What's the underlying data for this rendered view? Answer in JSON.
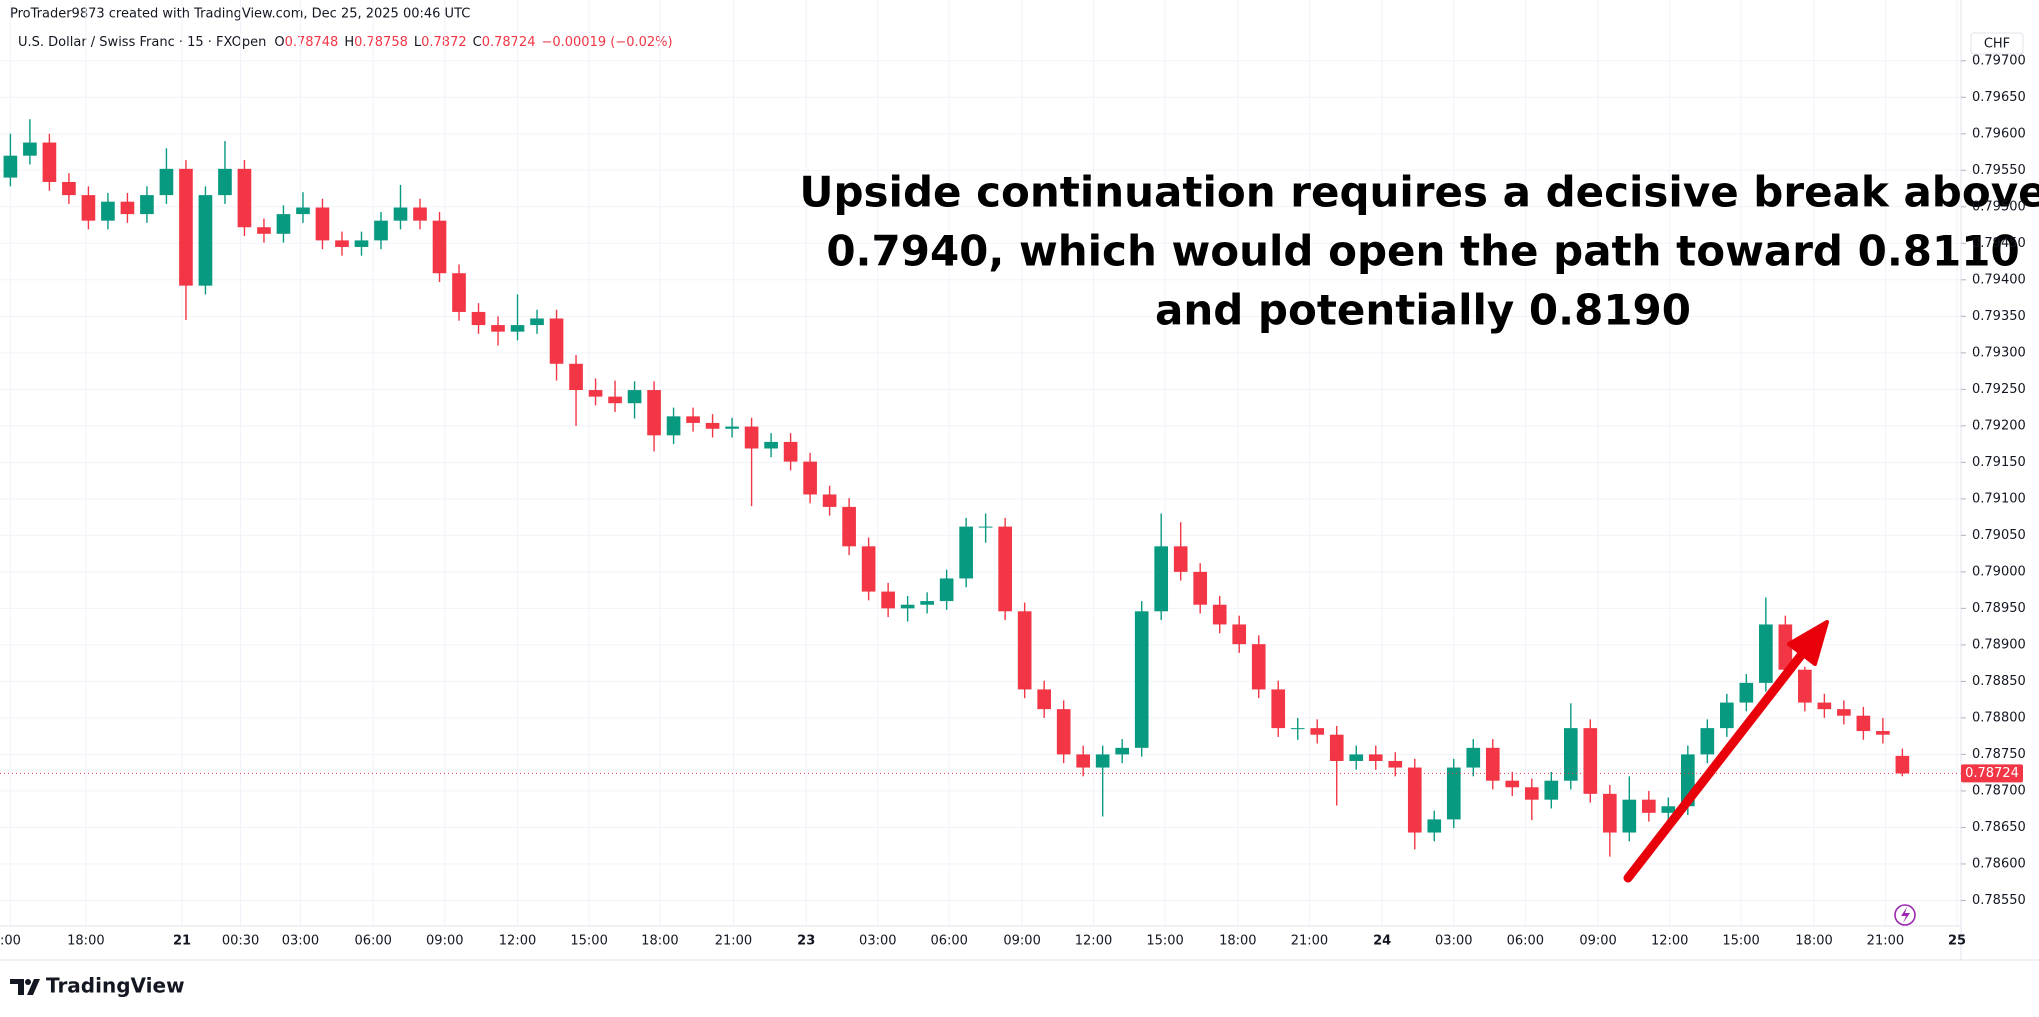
{
  "header": {
    "attribution": "ProTrader9873 created with TradingView.com, Dec 25, 2025 00:46 UTC"
  },
  "legend": {
    "symbol": "U.S. Dollar / Swiss Franc · 15 · FXOpen",
    "o_label": "O",
    "o": 0.78748,
    "h_label": "H",
    "h": 0.78758,
    "l_label": "L",
    "l": 0.7872,
    "c_label": "C",
    "c": 0.78724,
    "change": "−0.00019 (−0.02%)"
  },
  "chart_data": {
    "type": "candlestick",
    "annotation": [
      "Upside continuation requires a decisive break above",
      "0.7940, which would open the path toward 0.8110",
      "and potentially 0.8190"
    ],
    "currency": "CHF",
    "up_color": "#089981",
    "down_color": "#f23645",
    "last_price": 0.78724,
    "open": [
      0.7954,
      0.7957,
      0.79588,
      0.79534,
      0.79516,
      0.79481,
      0.79507,
      0.7949,
      0.79516,
      0.79552,
      0.79392,
      0.79516,
      0.79552,
      0.79472,
      0.79463,
      0.7949,
      0.79499,
      0.79454,
      0.79445,
      0.79454,
      0.79481,
      0.79499,
      0.79481,
      0.79409,
      0.79356,
      0.79338,
      0.79329,
      0.79338,
      0.79347,
      0.79285,
      0.79249,
      0.7924,
      0.79231,
      0.79249,
      0.79187,
      0.79213,
      0.79204,
      0.79196,
      0.79199,
      0.79169,
      0.79178,
      0.79151,
      0.79106,
      0.79089,
      0.79035,
      0.78973,
      0.7895,
      0.78955,
      0.7896,
      0.78991,
      0.79062,
      0.79062,
      0.78946,
      0.78839,
      0.78812,
      0.7875,
      0.78732,
      0.7875,
      0.78759,
      0.78946,
      0.79035,
      0.79,
      0.78955,
      0.78928,
      0.78901,
      0.78839,
      0.78786,
      0.78786,
      0.78777,
      0.78741,
      0.7875,
      0.78741,
      0.78732,
      0.78643,
      0.78661,
      0.78732,
      0.78759,
      0.78714,
      0.78705,
      0.78688,
      0.78714,
      0.78786,
      0.78696,
      0.78643,
      0.78688,
      0.7867,
      0.78679,
      0.7875,
      0.78786,
      0.78821,
      0.78848,
      0.78928,
      0.78866,
      0.78821,
      0.78812,
      0.78803,
      0.78782,
      0.78748
    ],
    "high": [
      0.796,
      0.7962,
      0.796,
      0.79546,
      0.79528,
      0.79519,
      0.79519,
      0.79528,
      0.7958,
      0.79564,
      0.79528,
      0.7959,
      0.79564,
      0.79484,
      0.79502,
      0.7952,
      0.79511,
      0.79466,
      0.79466,
      0.79493,
      0.7953,
      0.79511,
      0.79493,
      0.79421,
      0.79368,
      0.7935,
      0.7938,
      0.79359,
      0.79359,
      0.79297,
      0.79265,
      0.79262,
      0.79261,
      0.79261,
      0.79225,
      0.79225,
      0.79216,
      0.79211,
      0.79211,
      0.7919,
      0.7919,
      0.79163,
      0.79118,
      0.79101,
      0.79047,
      0.78985,
      0.78967,
      0.78972,
      0.79003,
      0.79074,
      0.7908,
      0.79074,
      0.78958,
      0.78851,
      0.78824,
      0.78762,
      0.78762,
      0.78771,
      0.7896,
      0.7908,
      0.79068,
      0.79012,
      0.78967,
      0.7894,
      0.78913,
      0.78851,
      0.788,
      0.78798,
      0.78789,
      0.78762,
      0.78762,
      0.78753,
      0.78744,
      0.78673,
      0.78744,
      0.78771,
      0.78771,
      0.78726,
      0.78717,
      0.78726,
      0.7882,
      0.78798,
      0.78708,
      0.7872,
      0.787,
      0.78691,
      0.78762,
      0.78798,
      0.78833,
      0.7886,
      0.78965,
      0.7894,
      0.7887,
      0.78833,
      0.78824,
      0.78815,
      0.788,
      0.78758
    ],
    "low": [
      0.79528,
      0.79558,
      0.79522,
      0.79504,
      0.79469,
      0.79469,
      0.79478,
      0.79478,
      0.79504,
      0.79345,
      0.7938,
      0.79504,
      0.7946,
      0.79451,
      0.79451,
      0.79478,
      0.79442,
      0.79433,
      0.79433,
      0.79442,
      0.79469,
      0.79469,
      0.79397,
      0.79344,
      0.79326,
      0.7931,
      0.79317,
      0.79326,
      0.79262,
      0.792,
      0.79228,
      0.79219,
      0.7921,
      0.79165,
      0.79175,
      0.79192,
      0.79184,
      0.79184,
      0.7909,
      0.79157,
      0.79139,
      0.79094,
      0.79077,
      0.79023,
      0.78961,
      0.78938,
      0.78932,
      0.78943,
      0.78948,
      0.78979,
      0.7904,
      0.78934,
      0.78827,
      0.788,
      0.78738,
      0.7872,
      0.78665,
      0.78738,
      0.78747,
      0.78934,
      0.78988,
      0.78943,
      0.78916,
      0.78889,
      0.78827,
      0.78774,
      0.7877,
      0.78765,
      0.7868,
      0.78729,
      0.78729,
      0.7872,
      0.7862,
      0.78631,
      0.78649,
      0.7872,
      0.78702,
      0.78693,
      0.7866,
      0.78676,
      0.78702,
      0.78684,
      0.7861,
      0.78631,
      0.78658,
      0.7865,
      0.78667,
      0.78738,
      0.78774,
      0.78809,
      0.78836,
      0.78854,
      0.78809,
      0.788,
      0.78791,
      0.7877,
      0.78765,
      0.7872
    ],
    "close": [
      0.7957,
      0.79588,
      0.79534,
      0.79516,
      0.79481,
      0.79507,
      0.7949,
      0.79516,
      0.79552,
      0.79392,
      0.79516,
      0.79552,
      0.79472,
      0.79463,
      0.7949,
      0.79499,
      0.79454,
      0.79445,
      0.79454,
      0.79481,
      0.79499,
      0.79481,
      0.79409,
      0.79356,
      0.79338,
      0.79329,
      0.79338,
      0.79347,
      0.79285,
      0.79249,
      0.7924,
      0.79231,
      0.79249,
      0.79187,
      0.79213,
      0.79204,
      0.79196,
      0.79199,
      0.79169,
      0.79178,
      0.79151,
      0.79106,
      0.79089,
      0.79035,
      0.78973,
      0.7895,
      0.78955,
      0.7896,
      0.78991,
      0.79062,
      0.79062,
      0.78946,
      0.78839,
      0.78812,
      0.7875,
      0.78732,
      0.7875,
      0.78759,
      0.78946,
      0.79035,
      0.79,
      0.78955,
      0.78928,
      0.78901,
      0.78839,
      0.78786,
      0.78786,
      0.78777,
      0.78741,
      0.7875,
      0.78741,
      0.78732,
      0.78643,
      0.78661,
      0.78732,
      0.78759,
      0.78714,
      0.78705,
      0.78688,
      0.78714,
      0.78786,
      0.78696,
      0.78643,
      0.78688,
      0.7867,
      0.78679,
      0.7875,
      0.78786,
      0.78821,
      0.78848,
      0.78928,
      0.78866,
      0.78821,
      0.78812,
      0.78803,
      0.78782,
      0.78777,
      0.78724
    ],
    "xlim": [
      0,
      100
    ],
    "xticks": [
      {
        "value": 0,
        "label": ":00"
      },
      {
        "value": 3.87,
        "label": "18:00"
      },
      {
        "value": 8.8,
        "label": "21"
      },
      {
        "value": 11.8,
        "label": "00:30"
      },
      {
        "value": 14.87,
        "label": "03:00"
      },
      {
        "value": 18.6,
        "label": "06:00"
      },
      {
        "value": 22.27,
        "label": "09:00"
      },
      {
        "value": 26,
        "label": "12:00"
      },
      {
        "value": 29.67,
        "label": "15:00"
      },
      {
        "value": 33.3,
        "label": "18:00"
      },
      {
        "value": 37.07,
        "label": "21:00"
      },
      {
        "value": 40.8,
        "label": "23"
      },
      {
        "value": 44.47,
        "label": "03:00"
      },
      {
        "value": 48.13,
        "label": "06:00"
      },
      {
        "value": 51.87,
        "label": "09:00"
      },
      {
        "value": 55.53,
        "label": "12:00"
      },
      {
        "value": 59.2,
        "label": "15:00"
      },
      {
        "value": 62.93,
        "label": "18:00"
      },
      {
        "value": 66.6,
        "label": "21:00"
      },
      {
        "value": 70.33,
        "label": "24"
      },
      {
        "value": 74,
        "label": "03:00"
      },
      {
        "value": 77.67,
        "label": "06:00"
      },
      {
        "value": 81.4,
        "label": "09:00"
      },
      {
        "value": 85.07,
        "label": "12:00"
      },
      {
        "value": 88.73,
        "label": "15:00"
      },
      {
        "value": 92.47,
        "label": "18:00"
      },
      {
        "value": 96.13,
        "label": "21:00"
      },
      {
        "value": 99.8,
        "label": "25"
      }
    ],
    "ylim": [
      0.78515,
      0.79712
    ],
    "yticks": [
      {
        "value": 0.7855,
        "label": "0.78550"
      },
      {
        "value": 0.786,
        "label": "0.78600"
      },
      {
        "value": 0.7865,
        "label": "0.78650"
      },
      {
        "value": 0.787,
        "label": "0.78700"
      },
      {
        "value": 0.7875,
        "label": "0.78750"
      },
      {
        "value": 0.788,
        "label": "0.78800"
      },
      {
        "value": 0.7885,
        "label": "0.78850"
      },
      {
        "value": 0.789,
        "label": "0.78900"
      },
      {
        "value": 0.7895,
        "label": "0.78950"
      },
      {
        "value": 0.79,
        "label": "0.79000"
      },
      {
        "value": 0.7905,
        "label": "0.79050"
      },
      {
        "value": 0.791,
        "label": "0.79100"
      },
      {
        "value": 0.7915,
        "label": "0.79150"
      },
      {
        "value": 0.792,
        "label": "0.79200"
      },
      {
        "value": 0.7925,
        "label": "0.79250"
      },
      {
        "value": 0.793,
        "label": "0.79300"
      },
      {
        "value": 0.7935,
        "label": "0.79350"
      },
      {
        "value": 0.794,
        "label": "0.79400"
      },
      {
        "value": 0.7945,
        "label": "0.79450"
      },
      {
        "value": 0.795,
        "label": "0.79500"
      },
      {
        "value": 0.7955,
        "label": "0.79550"
      },
      {
        "value": 0.796,
        "label": "0.79600"
      },
      {
        "value": 0.7965,
        "label": "0.79650"
      },
      {
        "value": 0.797,
        "label": "0.79700"
      }
    ],
    "grid": true
  },
  "footer": {
    "brand": "TradingView"
  }
}
